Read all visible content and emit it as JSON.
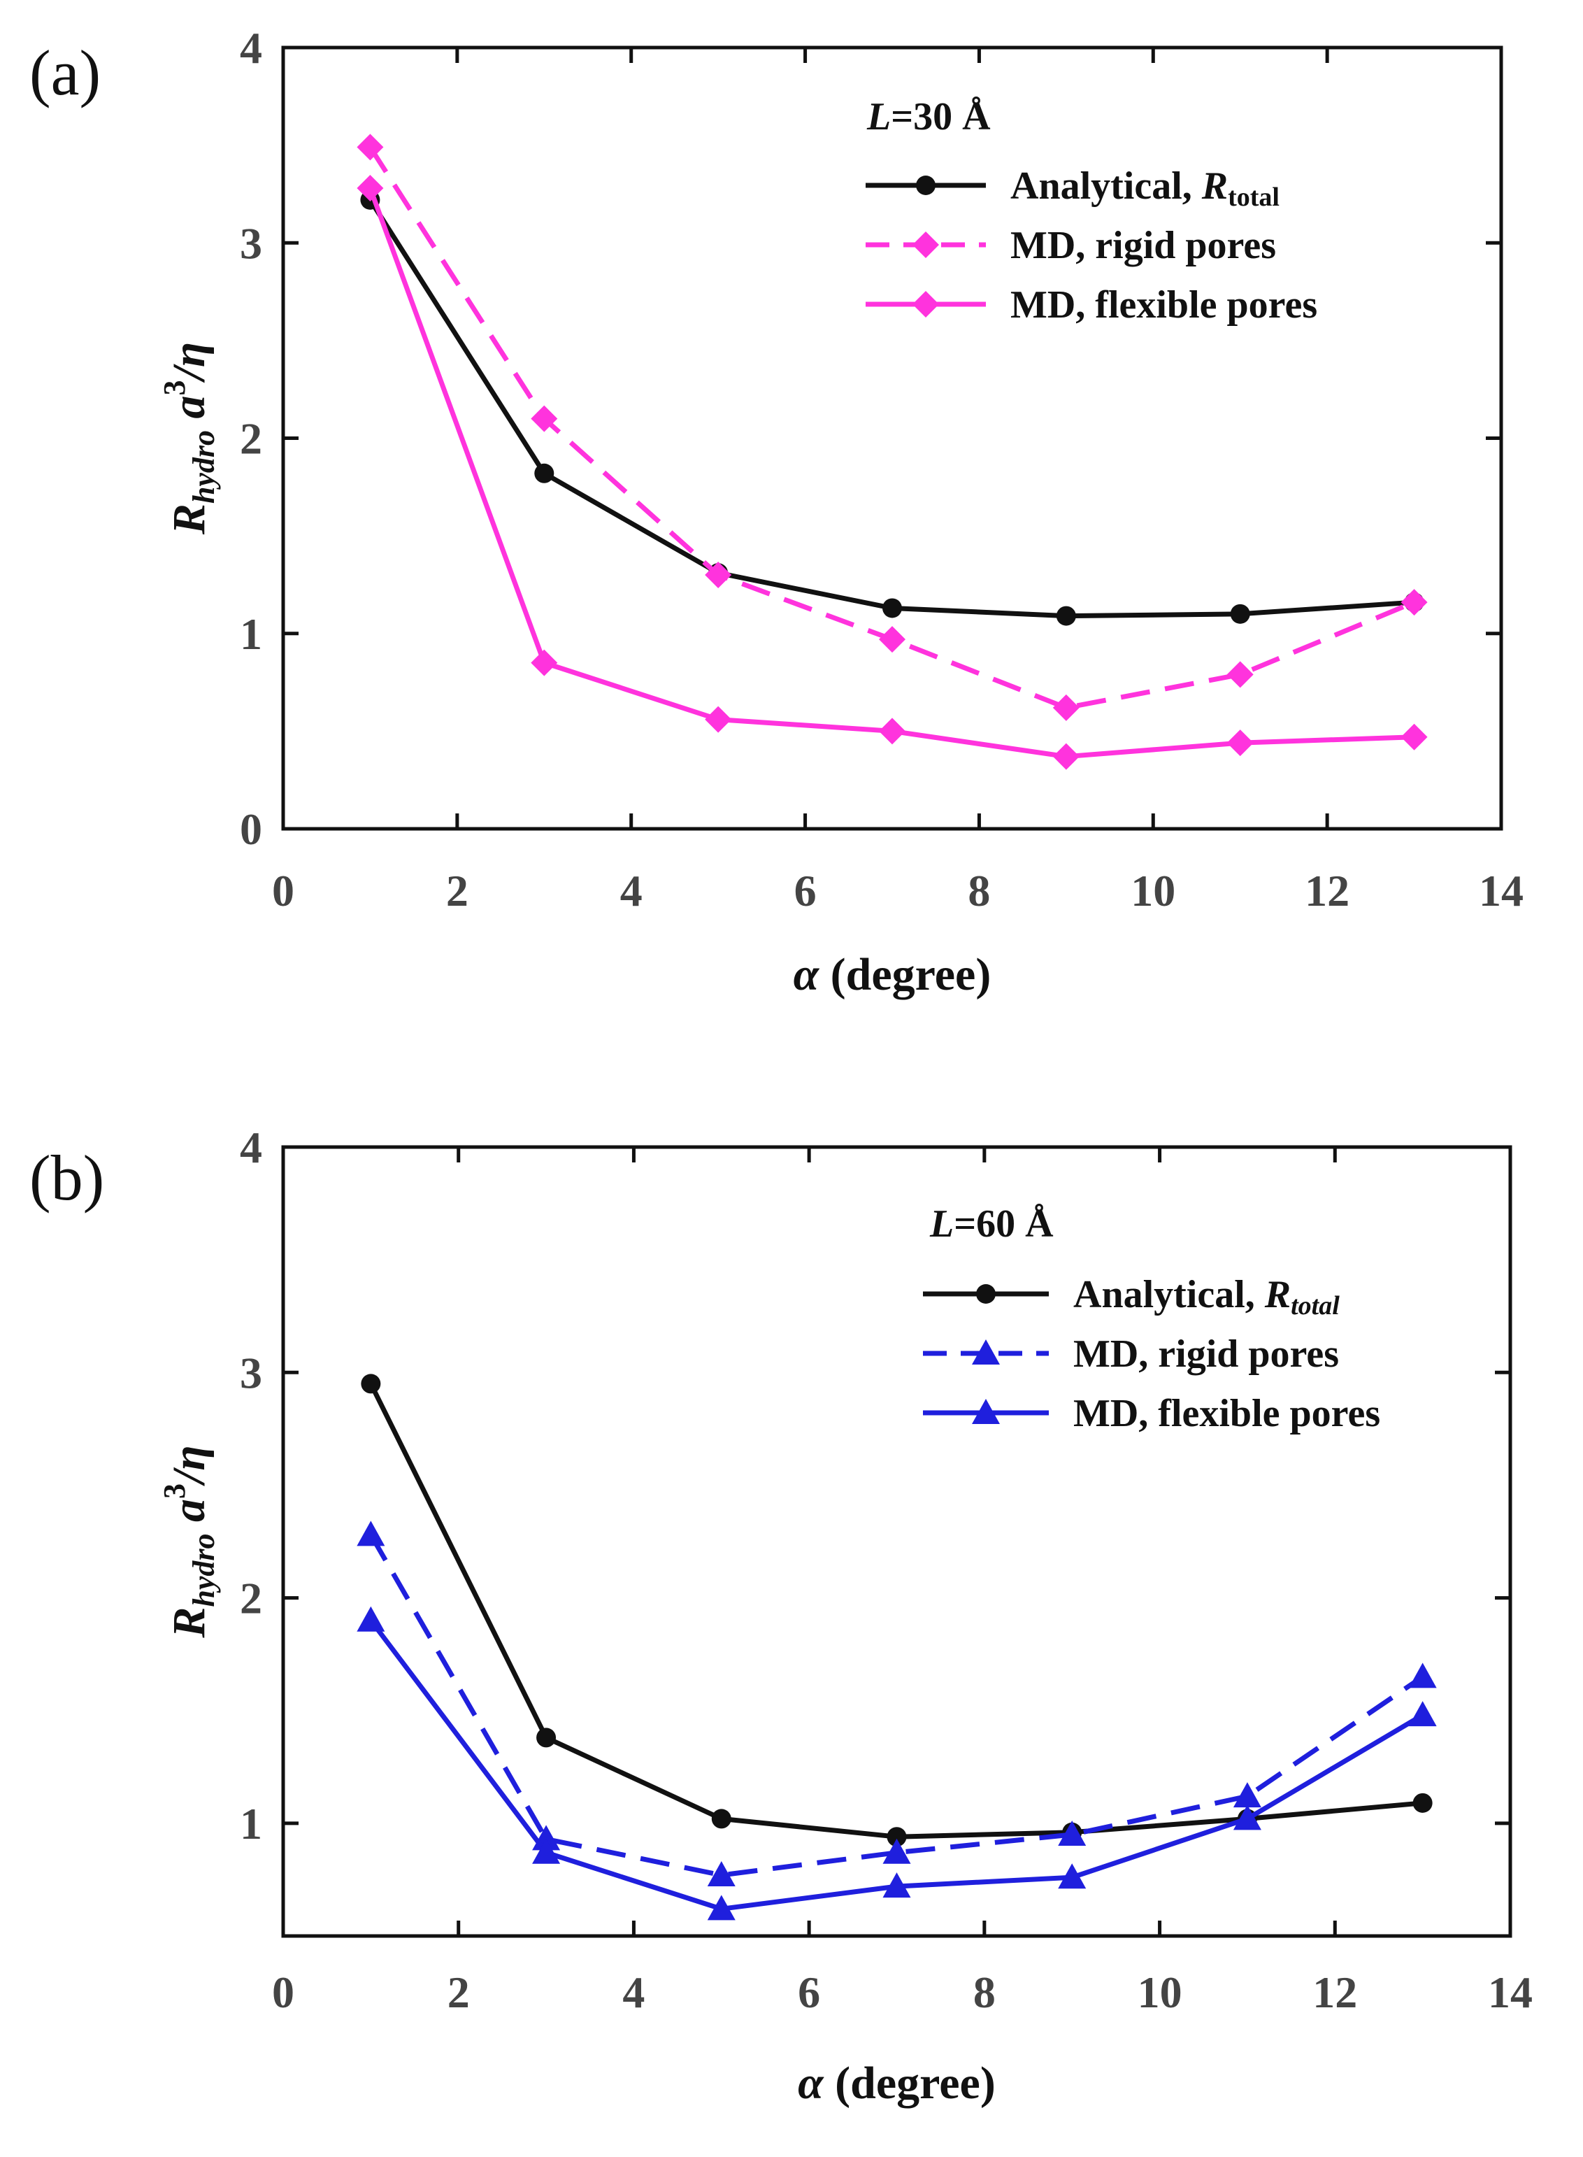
{
  "chart_data": [
    {
      "panel_label": "(a)",
      "type": "line",
      "title": "",
      "xlabel": {
        "symbol": "α",
        "text": "(degree)"
      },
      "ylabel": {
        "main": "R",
        "sub": "hydro",
        "rest": " a",
        "sup": "3",
        "tail": "/η"
      },
      "xlim": [
        0,
        14
      ],
      "ylim": [
        0,
        4
      ],
      "xticks": [
        "0",
        "2",
        "4",
        "6",
        "8",
        "10",
        "12",
        "14"
      ],
      "yticks": [
        "0",
        "1",
        "2",
        "3",
        "4"
      ],
      "x": [
        1,
        3,
        5,
        7,
        9,
        11,
        13
      ],
      "legend_title": {
        "var": "L",
        "rest": "=30 Å"
      },
      "legend_position": "top-right",
      "series": [
        {
          "name": "Analytical, ",
          "name_italic": "R",
          "name_sub": "total",
          "color": "#111111",
          "dash": "solid",
          "marker": "circle",
          "values": [
            3.22,
            1.82,
            1.31,
            1.13,
            1.09,
            1.1,
            1.16
          ]
        },
        {
          "name": "MD, rigid pores",
          "color": "#ff33dd",
          "dash": "dashed",
          "marker": "diamond",
          "values": [
            3.49,
            2.1,
            1.3,
            0.97,
            0.62,
            0.79,
            1.16
          ]
        },
        {
          "name": "MD, flexible pores",
          "color": "#ff33dd",
          "dash": "solid",
          "marker": "diamond",
          "values": [
            3.28,
            0.85,
            0.56,
            0.5,
            0.37,
            0.44,
            0.47
          ]
        }
      ]
    },
    {
      "panel_label": "(b)",
      "type": "line",
      "title": "",
      "xlabel": {
        "symbol": "α",
        "text": "(degree)"
      },
      "ylabel": {
        "main": "R",
        "sub": "hydro",
        "rest": " a",
        "sup": "3",
        "tail": "/η"
      },
      "xlim": [
        0,
        14
      ],
      "ylim": [
        0.5,
        4
      ],
      "xticks": [
        "0",
        "2",
        "4",
        "6",
        "8",
        "10",
        "12",
        "14"
      ],
      "yticks": [
        "1",
        "2",
        "3",
        "4"
      ],
      "x": [
        1,
        3,
        5,
        7,
        9,
        11,
        13
      ],
      "legend_title": {
        "var": "L",
        "rest": "=60 Å"
      },
      "legend_position": "top-right",
      "series": [
        {
          "name": "Analytical, ",
          "name_italic": "R",
          "name_sub": "total",
          "color": "#111111",
          "dash": "solid",
          "marker": "circle",
          "values": [
            2.95,
            1.38,
            1.02,
            0.94,
            0.96,
            1.02,
            1.09
          ]
        },
        {
          "name": "MD, rigid pores",
          "color": "#1f1fdd",
          "dash": "dashed",
          "marker": "triangle",
          "values": [
            2.28,
            0.93,
            0.77,
            0.87,
            0.95,
            1.12,
            1.65
          ]
        },
        {
          "name": "MD, flexible pores",
          "color": "#1f1fdd",
          "dash": "solid",
          "marker": "triangle",
          "values": [
            1.9,
            0.87,
            0.62,
            0.72,
            0.76,
            1.02,
            1.48
          ]
        }
      ]
    }
  ]
}
